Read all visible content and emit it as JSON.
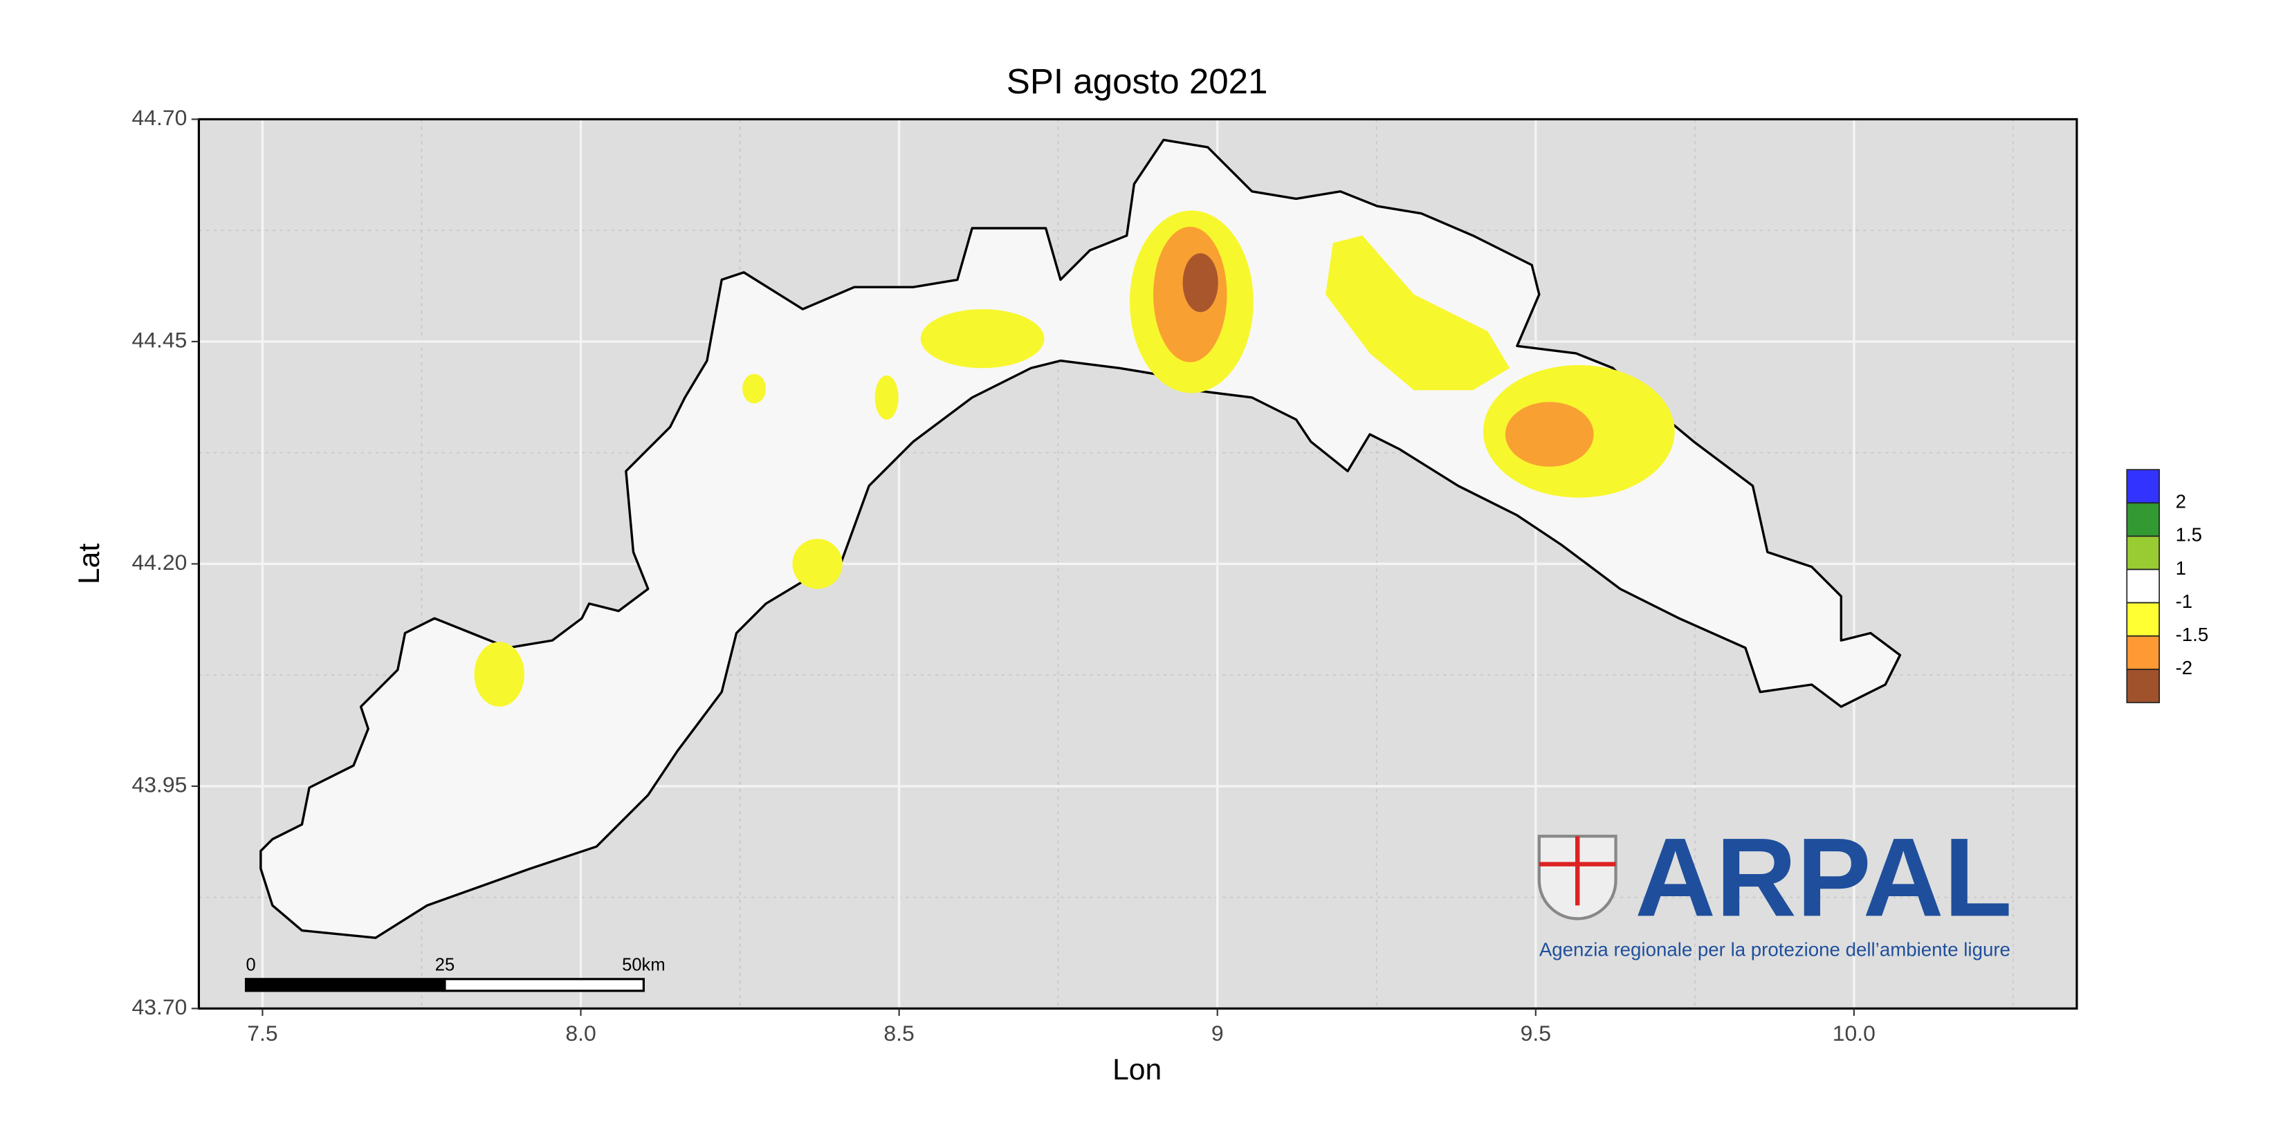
{
  "chart_data": {
    "type": "map",
    "title": "SPI agosto 2021",
    "xlabel": "Lon",
    "ylabel": "Lat",
    "xlim": [
      7.4,
      10.35
    ],
    "ylim": [
      43.7,
      44.7
    ],
    "xticks": [
      7.5,
      {
        "value": 8,
        "label": "8.0"
      },
      8.5,
      9,
      9.5,
      {
        "value": 10,
        "label": "10.0"
      }
    ],
    "yticks": [
      {
        "value": 44.7,
        "label": "44.70"
      },
      44.45,
      {
        "value": 44.2,
        "label": "44.20"
      },
      43.95,
      {
        "value": 43.7,
        "label": "43.70"
      }
    ],
    "xtick_labels_shown": [
      7.5,
      8,
      8.5,
      9,
      9.5,
      10
    ],
    "grid": true,
    "legend": {
      "breaks": [
        2,
        1.5,
        1,
        -1,
        -1.5,
        -2
      ],
      "colors": [
        "#3333ff",
        "#339933",
        "#99cc33",
        "#ffffff",
        "#ffff33",
        "#ff9933",
        "#a0522d"
      ]
    },
    "scale_bar": {
      "ticks": [
        0,
        25,
        {
          "value": 50,
          "label": "50km"
        }
      ]
    },
    "logo": {
      "name": "ARPAL",
      "subtitle": "Agenzia regionale per la protezione dell’ambiente ligure"
    }
  }
}
